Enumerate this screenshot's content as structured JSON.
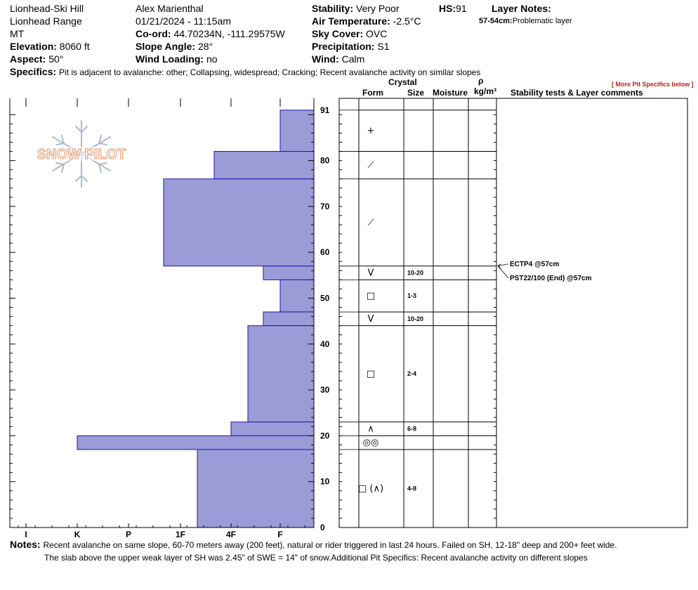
{
  "header": {
    "location": "Lionhead-Ski Hill",
    "range": "Lionhead Range",
    "state": "MT",
    "elevation_label": "Elevation:",
    "elevation": "8060 ft",
    "aspect_label": "Aspect:",
    "aspect": "50°",
    "observer": "Alex Marienthal",
    "datetime": "01/21/2024 - 11:15am",
    "coord_label": "Co-ord:",
    "coord": "44.70234N, -111.29575W",
    "slope_label": "Slope Angle:",
    "slope": "28°",
    "wind_loading_label": "Wind Loading:",
    "wind_loading": "no",
    "stability_label": "Stability:",
    "stability": "Very Poor",
    "air_temp_label": "Air Temperature:",
    "air_temp": "-2.5°C",
    "sky_label": "Sky Cover:",
    "sky": "OVC",
    "precip_label": "Precipitation:",
    "precip": "S1",
    "wind_label": "Wind:",
    "wind": "Calm",
    "hs_label": "HS:",
    "hs": "91",
    "layer_notes_label": "Layer Notes:",
    "layer_note_range": "57-54cm:",
    "layer_note_text": "Problematic layer",
    "specifics_label": "Specifics:",
    "specifics": "Pit is adjacent to avalanche: other; Collapsing, widespread; Cracking; Recent avalanche activity on similar slopes",
    "more_link": "[ More Pit Specifics below ]"
  },
  "logo_text": "SNOW PILOT",
  "table_headers": {
    "crystal": "Crystal",
    "form": "Form",
    "size": "Size",
    "moisture": "Moisture",
    "rho": "ρ",
    "density_unit": "kg/m³",
    "stability": "Stability tests & Layer comments"
  },
  "chart_data": {
    "type": "snow_profile",
    "y_label": "",
    "y_range": [
      0,
      91
    ],
    "y_ticks": [
      "0",
      "10",
      "20",
      "30",
      "40",
      "50",
      "60",
      "70",
      "80",
      "91"
    ],
    "hardness_ticks": [
      "I",
      "K",
      "P",
      "1F",
      "4F",
      "F"
    ],
    "hardness_profile": [
      {
        "top": 91,
        "bottom": 82,
        "hardness": "F"
      },
      {
        "top": 82,
        "bottom": 76,
        "hardness": "4F+"
      },
      {
        "top": 76,
        "bottom": 57,
        "hardness": "1F+"
      },
      {
        "top": 57,
        "bottom": 54,
        "hardness": "F+"
      },
      {
        "top": 54,
        "bottom": 47,
        "hardness": "F"
      },
      {
        "top": 47,
        "bottom": 44,
        "hardness": "F+"
      },
      {
        "top": 44,
        "bottom": 23,
        "hardness": "4F-"
      },
      {
        "top": 23,
        "bottom": 20,
        "hardness": "4F"
      },
      {
        "top": 20,
        "bottom": 17,
        "hardness": "K"
      },
      {
        "top": 17,
        "bottom": 0,
        "hardness": "1F-"
      }
    ],
    "layers": [
      {
        "top": 91,
        "bottom": 82,
        "form": "+",
        "size": ""
      },
      {
        "top": 82,
        "bottom": 76,
        "form": "⟋",
        "size": ""
      },
      {
        "top": 76,
        "bottom": 57,
        "form": "⟋",
        "size": ""
      },
      {
        "top": 57,
        "bottom": 54,
        "form": "V",
        "size": "10-20"
      },
      {
        "top": 54,
        "bottom": 47,
        "form": "□",
        "size": "1-3"
      },
      {
        "top": 47,
        "bottom": 44,
        "form": "V",
        "size": "10-20"
      },
      {
        "top": 44,
        "bottom": 23,
        "form": "□",
        "size": "2-4"
      },
      {
        "top": 23,
        "bottom": 20,
        "form": "∧",
        "size": "6-8"
      },
      {
        "top": 20,
        "bottom": 17,
        "form": "◎◎",
        "size": ""
      },
      {
        "top": 17,
        "bottom": 0,
        "form": "□ (∧)",
        "size": "4-8"
      }
    ],
    "tests": [
      {
        "label": "ECTP4 @57cm",
        "depth": 57
      },
      {
        "label": "PST22/100 (End) @57cm",
        "depth": 57
      }
    ]
  },
  "notes": {
    "label": "Notes:",
    "line1": "Recent avalanche on same slope, 60-70 meters away (200 feet), natural or rider triggered in last 24 hours. Failed on SH, 12-18\" deep and 200+ feet wide.",
    "line2": "The slab above the upper weak layer of SH was 2.45\" of SWE = 14\" of snow.Additional Pit Specifics: Recent avalanche activity on different slopes"
  },
  "colors": {
    "bar_fill": "#9b9bd8",
    "bar_stroke": "#1a1aa6",
    "logo_orange": "#e8a27d",
    "logo_blue": "#aeb9cc"
  }
}
